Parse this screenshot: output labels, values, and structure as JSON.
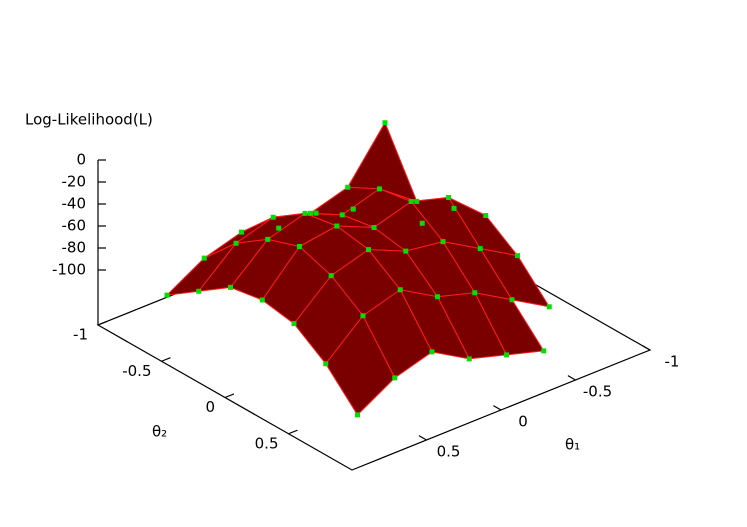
{
  "chart_data": {
    "type": "surface3d",
    "zlabel": "Log-Likelihood(L)",
    "xlabel": "θ₁",
    "ylabel": "θ₂",
    "x": [
      -1,
      -0.75,
      -0.5,
      -0.25,
      0,
      0.25,
      0.5,
      0.75,
      1
    ],
    "y": [
      -1,
      -0.75,
      -0.5,
      -0.25,
      0,
      0.25,
      0.5,
      0.75,
      1
    ],
    "z": [
      [
        null,
        null,
        null,
        null,
        null,
        null,
        null,
        null,
        null
      ],
      [
        null,
        null,
        -120,
        -90,
        -80,
        -100,
        -130,
        null,
        null
      ],
      [
        null,
        -110,
        -15,
        -70,
        -50,
        -80,
        -110,
        -140,
        null
      ],
      [
        null,
        -100,
        -60,
        -45,
        -40,
        -60,
        -90,
        -130,
        null
      ],
      [
        null,
        -100,
        -70,
        -55,
        -50,
        -55,
        -80,
        -120,
        null
      ],
      [
        null,
        -90,
        -60,
        -40,
        -35,
        -40,
        -60,
        -100,
        null
      ],
      [
        null,
        -100,
        -70,
        -50,
        -40,
        -50,
        -70,
        -110,
        null
      ],
      [
        null,
        -120,
        -100,
        -80,
        -75,
        -80,
        -100,
        -130,
        null
      ],
      [
        null,
        null,
        null,
        null,
        null,
        null,
        null,
        null,
        null
      ]
    ],
    "xlim": [
      -1,
      1
    ],
    "ylim": [
      -1,
      1
    ],
    "zlim": [
      -150,
      0
    ],
    "xticks": [
      -1,
      -0.5,
      0,
      0.5
    ],
    "yticks": [
      -1,
      -0.5,
      0,
      0.5
    ],
    "zticks": [
      0,
      -20,
      -40,
      -60,
      -80,
      -100
    ],
    "surface_color": "#7a0000",
    "mesh_color": "#ff1a1a",
    "point_color": "#00e000"
  }
}
